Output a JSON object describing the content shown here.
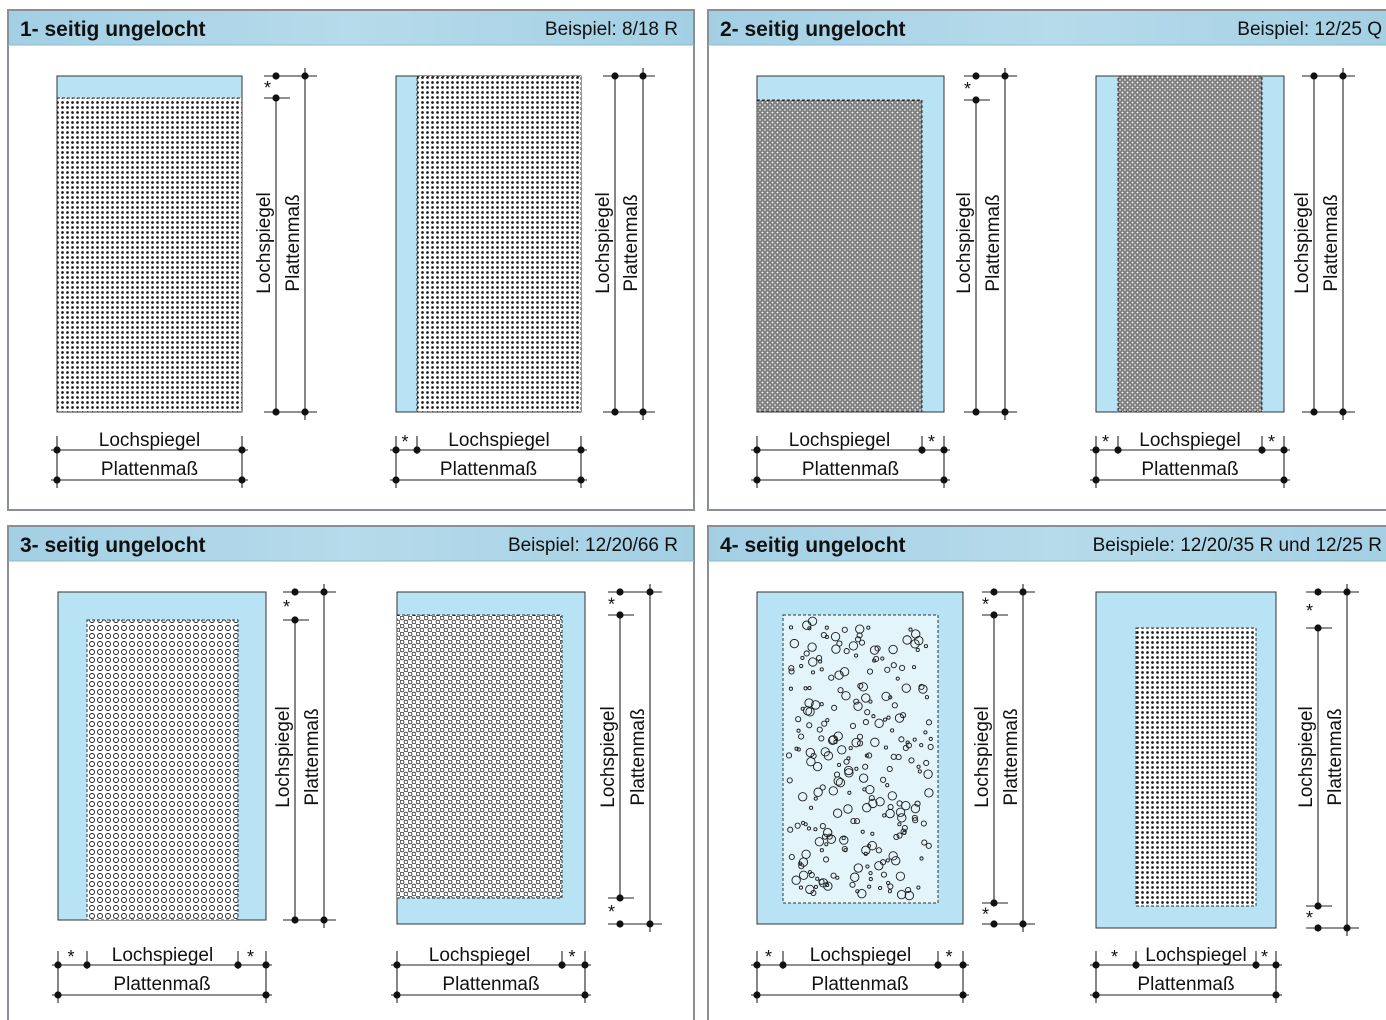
{
  "panels": [
    {
      "title": "1- seitig ungelocht",
      "example": "Beispiel: 8/18 R",
      "boards": [
        {
          "label_lochspiegel": "Lochspiegel",
          "label_plattenmass": "Plattenmaß",
          "star": "*"
        },
        {
          "label_lochspiegel": "Lochspiegel",
          "label_plattenmass": "Plattenmaß",
          "star": "*"
        }
      ]
    },
    {
      "title": "2- seitig ungelocht",
      "example": "Beispiel: 12/25 Q",
      "boards": [
        {
          "label_lochspiegel": "Lochspiegel",
          "label_plattenmass": "Plattenmaß",
          "star": "*"
        },
        {
          "label_lochspiegel": "Lochspiegel",
          "label_plattenmass": "Plattenmaß",
          "star": "*"
        }
      ]
    },
    {
      "title": "3- seitig ungelocht",
      "example": "Beispiel: 12/20/66 R",
      "boards": [
        {
          "label_lochspiegel": "Lochspiegel",
          "label_plattenmass": "Plattenmaß",
          "star": "*"
        },
        {
          "label_lochspiegel": "Lochspiegel",
          "label_plattenmass": "Plattenmaß",
          "star": "*"
        }
      ]
    },
    {
      "title": "4- seitig ungelocht",
      "example": "Beispiele: 12/20/35 R und 12/25 R",
      "boards": [
        {
          "label_lochspiegel": "Lochspiegel",
          "label_plattenmass": "Plattenmaß",
          "star": "*"
        },
        {
          "label_lochspiegel": "Lochspiegel",
          "label_plattenmass": "Plattenmaß",
          "star": "*"
        }
      ]
    }
  ],
  "colors": {
    "panel_header": "#a9d3e6",
    "panel_border": "#8a8f96",
    "board_fill": "#b7e3f5",
    "perforation_bg": "#ffffff",
    "scatter_bg": "#e4f4fb",
    "hole": "#1a1a1a"
  }
}
